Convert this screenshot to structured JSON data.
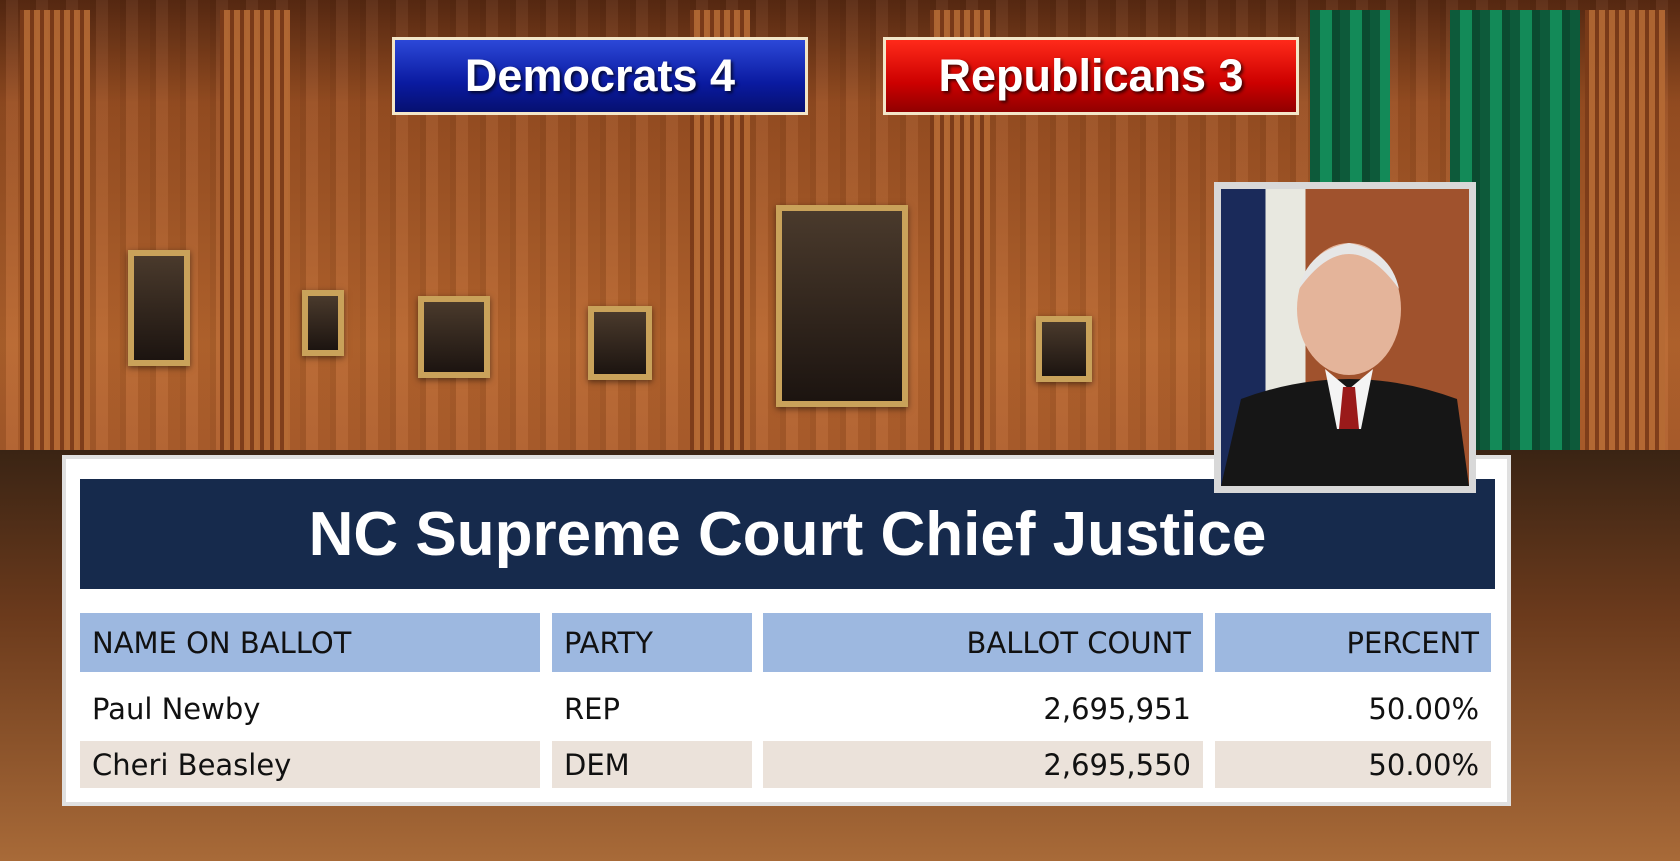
{
  "header": {
    "democrats": "Democrats 4",
    "republicans": "Republicans 3"
  },
  "table": {
    "title": "NC Supreme Court Chief Justice",
    "columns": [
      "NAME ON BALLOT",
      "PARTY",
      "BALLOT COUNT",
      "PERCENT"
    ],
    "rows": [
      [
        "Paul Newby",
        "REP",
        "2,695,951",
        "50.00%"
      ],
      [
        "Cheri Beasley",
        "DEM",
        "2,695,550",
        "50.00%"
      ]
    ]
  }
}
